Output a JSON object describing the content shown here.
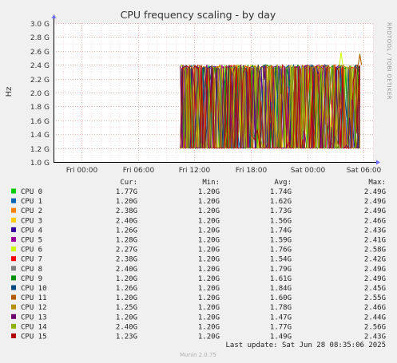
{
  "page": {
    "title": "CPU frequency scaling - by day",
    "side_label": "RRDTOOL / TOBI OETIKER",
    "footer": "Munin 2.0.75",
    "last_update": "Last update: Sat Jun 28 08:35:06 2025"
  },
  "legend": {
    "headers": [
      "Cur:",
      "Min:",
      "Avg:",
      "Max:"
    ],
    "rows": [
      {
        "name": "CPU 0",
        "color": "#00cc00",
        "cur": "1.77G",
        "min": "1.20G",
        "avg": "1.74G",
        "max": "2.49G"
      },
      {
        "name": "CPU 1",
        "color": "#0066b3",
        "cur": "1.20G",
        "min": "1.20G",
        "avg": "1.62G",
        "max": "2.49G"
      },
      {
        "name": "CPU 2",
        "color": "#ff8000",
        "cur": "2.38G",
        "min": "1.20G",
        "avg": "1.73G",
        "max": "2.49G"
      },
      {
        "name": "CPU 3",
        "color": "#ffcc00",
        "cur": "2.40G",
        "min": "1.20G",
        "avg": "1.56G",
        "max": "2.46G"
      },
      {
        "name": "CPU 4",
        "color": "#330099",
        "cur": "1.26G",
        "min": "1.20G",
        "avg": "1.74G",
        "max": "2.43G"
      },
      {
        "name": "CPU 5",
        "color": "#990099",
        "cur": "1.28G",
        "min": "1.20G",
        "avg": "1.59G",
        "max": "2.41G"
      },
      {
        "name": "CPU 6",
        "color": "#ccff00",
        "cur": "2.27G",
        "min": "1.20G",
        "avg": "1.76G",
        "max": "2.58G"
      },
      {
        "name": "CPU 7",
        "color": "#ff0000",
        "cur": "2.38G",
        "min": "1.20G",
        "avg": "1.54G",
        "max": "2.42G"
      },
      {
        "name": "CPU 8",
        "color": "#808080",
        "cur": "2.40G",
        "min": "1.20G",
        "avg": "1.79G",
        "max": "2.49G"
      },
      {
        "name": "CPU 9",
        "color": "#008f00",
        "cur": "1.20G",
        "min": "1.20G",
        "avg": "1.61G",
        "max": "2.49G"
      },
      {
        "name": "CPU 10",
        "color": "#00487d",
        "cur": "1.26G",
        "min": "1.20G",
        "avg": "1.84G",
        "max": "2.45G"
      },
      {
        "name": "CPU 11",
        "color": "#b35a00",
        "cur": "1.20G",
        "min": "1.20G",
        "avg": "1.60G",
        "max": "2.55G"
      },
      {
        "name": "CPU 12",
        "color": "#b38f00",
        "cur": "1.25G",
        "min": "1.20G",
        "avg": "1.78G",
        "max": "2.46G"
      },
      {
        "name": "CPU 13",
        "color": "#6b006b",
        "cur": "1.20G",
        "min": "1.20G",
        "avg": "1.47G",
        "max": "2.44G"
      },
      {
        "name": "CPU 14",
        "color": "#8fb300",
        "cur": "2.40G",
        "min": "1.20G",
        "avg": "1.77G",
        "max": "2.56G"
      },
      {
        "name": "CPU 15",
        "color": "#b30000",
        "cur": "1.23G",
        "min": "1.20G",
        "avg": "1.49G",
        "max": "2.43G"
      }
    ]
  },
  "chart_data": {
    "type": "line",
    "title": "CPU frequency scaling - by day",
    "xlabel": "",
    "ylabel": "Hz",
    "ylim": [
      1.0,
      3.0
    ],
    "y_unit": "G",
    "yticks": [
      "1.0 G",
      "1.2 G",
      "1.4 G",
      "1.6 G",
      "1.8 G",
      "2.0 G",
      "2.2 G",
      "2.4 G",
      "2.6 G",
      "2.8 G",
      "3.0 G"
    ],
    "xlim_hours": [
      -3,
      31
    ],
    "xticks": [
      {
        "label": "Fri 00:00",
        "hour": 0
      },
      {
        "label": "Fri 06:00",
        "hour": 6
      },
      {
        "label": "Fri 12:00",
        "hour": 12
      },
      {
        "label": "Fri 18:00",
        "hour": 18
      },
      {
        "label": "Sat 00:00",
        "hour": 24
      },
      {
        "label": "Sat 06:00",
        "hour": 30
      }
    ],
    "data_start_hour": 10.5,
    "data_end_hour": 29.6,
    "value_floor": 1.2,
    "value_ceiling": 2.4,
    "grid": true,
    "series_note_visible": "16 series CPU 0..CPU 15 oscillating between 1.20G and ~2.4G"
  }
}
